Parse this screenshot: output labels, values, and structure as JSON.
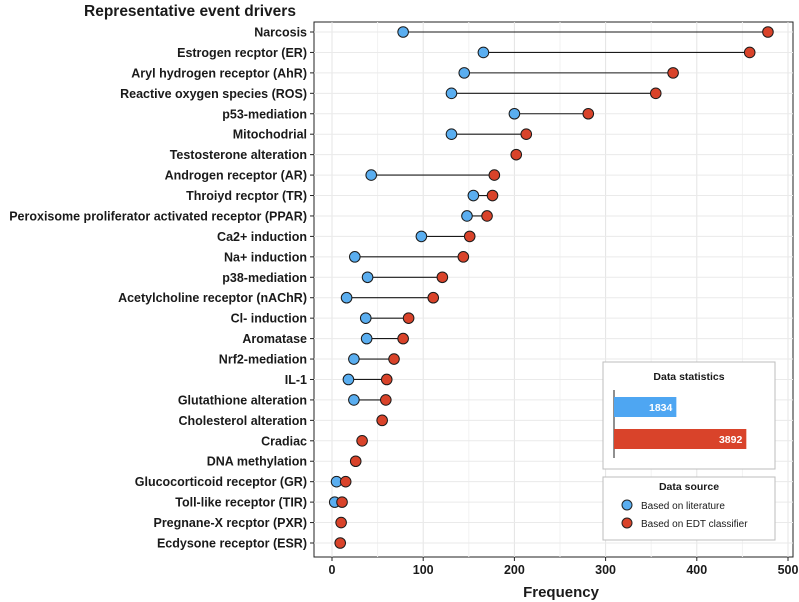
{
  "chart_data": {
    "type": "dumbbell",
    "title": "Representative event drivers",
    "xlabel": "Frequency",
    "ylabel": "",
    "xlim": [
      -10,
      500
    ],
    "x_ticks": [
      "0",
      "100",
      "200",
      "300",
      "400",
      "500"
    ],
    "x_tick_values": [
      0,
      100,
      200,
      300,
      400,
      500
    ],
    "grid": true,
    "categories": [
      "Narcosis",
      "Estrogen recptor (ER)",
      "Aryl hydrogen receptor (AhR)",
      "Reactive oxygen species (ROS)",
      "p53-mediation",
      "Mitochodrial",
      "Testosterone alteration",
      "Androgen receptor (AR)",
      "Throiyd recptor (TR)",
      "Peroxisome proliferator activated receptor (PPAR)",
      "Ca2+ induction",
      "Na+ induction",
      "p38-mediation",
      "Acetylcholine receptor (nAChR)",
      "Cl- induction",
      "Aromatase",
      "Nrf2-mediation",
      "IL-1",
      "Glutathione alteration",
      "Cholesterol alteration",
      "Cradiac",
      "DNA methylation",
      "Glucocorticoid receptor (GR)",
      "Toll-like receptor (TIR)",
      "Pregnane-X recptor (PXR)",
      "Ecdysone receptor (ESR)"
    ],
    "series": [
      {
        "name": "Based on literature",
        "color": "#5aaef0",
        "values": [
          78,
          166,
          145,
          131,
          200,
          131,
          null,
          43,
          155,
          148,
          98,
          25,
          39,
          16,
          37,
          38,
          24,
          18,
          24,
          null,
          null,
          null,
          5,
          3,
          null,
          null
        ]
      },
      {
        "name": "Based on EDT classifier",
        "color": "#d9432a",
        "values": [
          478,
          458,
          374,
          355,
          281,
          213,
          202,
          178,
          176,
          170,
          151,
          144,
          121,
          111,
          84,
          78,
          68,
          60,
          59,
          55,
          33,
          26,
          15,
          11,
          10,
          9
        ]
      }
    ],
    "inset": {
      "title": "Data statistics",
      "bars": [
        {
          "label": "1834",
          "value": 1834,
          "color": "#4ea6f2"
        },
        {
          "label": "3892",
          "value": 3892,
          "color": "#d9432a"
        }
      ]
    },
    "legend": {
      "title": "Data source",
      "position": "bottom-right",
      "items": [
        "Based on literature",
        "Based on EDT classifier"
      ]
    }
  }
}
